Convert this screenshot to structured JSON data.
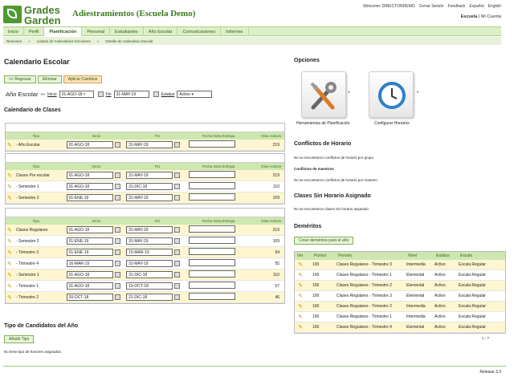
{
  "header": {
    "logo_line1": "Grades",
    "logo_line2": "Garden",
    "app_title": "Adiestramientos (Escuela Demo)",
    "top_links": [
      "Welcome: DIRECTORDEMO",
      "Cerrar Sesión",
      "Feedback",
      "Español",
      "English"
    ],
    "account_school": "Escuela",
    "account_sep": "|",
    "account_link": "Mi Cuenta"
  },
  "nav": {
    "tabs": [
      "Inicio",
      "Perfil",
      "Planificación",
      "Personal",
      "Estudiantes",
      "Año Escolar",
      "Comunicaciones",
      "Informes"
    ]
  },
  "breadcrumbs": [
    "Resumen",
    "»",
    "Listado de Calendarios Escolares",
    "»",
    "Detalle de Calendario Escolar"
  ],
  "page_title": "Calendario Escolar",
  "buttons": {
    "back": "<< Regresar",
    "delete": "Eliminar",
    "apply": "Aplicar Cambios"
  },
  "year": {
    "label": "Año Escolar",
    "arrows": "»»",
    "start_label": "Inicio",
    "start": "01-AGO-18",
    "clear": "×",
    "end_label": "Fin",
    "end": "31-MAY-19",
    "status_label": "Estatus",
    "status": "Activo"
  },
  "classes_title": "Calendario de Clases",
  "columns": {
    "tipo": "Tipo",
    "inicio": "Inicio",
    "fin": "Fin",
    "fecha": "Fecha Nota Entrega",
    "dias": "Días Activos"
  },
  "group1": [
    {
      "tipo": "- Año Escolar",
      "inicio": "01-AGO-18",
      "fin": "31-MAY-19",
      "dias": "219"
    }
  ],
  "group2": [
    {
      "tipo": "Clases Pre escolar",
      "inicio": "01-AGO-18",
      "fin": "31-MAY-19",
      "dias": "219"
    },
    {
      "tipo": "- Semestre 1",
      "inicio": "01-AGO-18",
      "fin": "31-DIC-18",
      "dias": "110"
    },
    {
      "tipo": "- Semestre 2",
      "inicio": "01-ENE-19",
      "fin": "31-MAY-19",
      "dias": "109"
    }
  ],
  "group3": [
    {
      "tipo": "Clases Regulares",
      "inicio": "01-AGO-18",
      "fin": "31-MAY-19",
      "dias": "219"
    },
    {
      "tipo": "- Semestre 2",
      "inicio": "01-ENE-19",
      "fin": "31-MAY-19",
      "dias": "109"
    },
    {
      "tipo": "- Trimestre 3",
      "inicio": "01-ENE-19",
      "fin": "15-MAR-19",
      "dias": "54"
    },
    {
      "tipo": "- Trimestre 4",
      "inicio": "16-MAR-19",
      "fin": "31-MAY-19",
      "dias": "55"
    },
    {
      "tipo": "- Semestre 1",
      "inicio": "01-AGO-18",
      "fin": "31-DIC-18",
      "dias": "110"
    },
    {
      "tipo": "- Trimestre 1",
      "inicio": "01-AGO-18",
      "fin": "19-OCT-18",
      "dias": "57"
    },
    {
      "tipo": "- Trimestre 2",
      "inicio": "20-OCT-18",
      "fin": "21-DIC-18",
      "dias": "46"
    }
  ],
  "candidates": {
    "title": "Tipo de Candidatos del Año",
    "add_button": "Añadir Tipo",
    "empty": "No tiene tipo de honores asignados."
  },
  "options": {
    "title": "Opciones",
    "tools_label": "Herramientas de Planificación",
    "schedule_label": "Configurar Horarios"
  },
  "conflicts": {
    "title": "Conflictos de Horario",
    "group_msg": "No se encontraron conflictos de horario por grupo",
    "teachers_title": "Conflictos de maestros",
    "teachers_msg": "No se encontraron conflictos de horario por maestro"
  },
  "unassigned": {
    "title": "Clases Sin Horario Asignado",
    "msg": "No se encontraron clases sin horario asignado"
  },
  "demerits": {
    "title": "Deméritos",
    "create_button": "Crear deméritos para el año",
    "headers": [
      "Ver",
      "Puntos",
      "Periodo",
      "Nivel",
      "Estatus",
      "Escala"
    ],
    "rows": [
      {
        "puntos": "100",
        "periodo": "Clases Regulares - Trimestre 3",
        "nivel": "Intermedia",
        "estatus": "Activo",
        "escala": "Escala Regular"
      },
      {
        "puntos": "100",
        "periodo": "Clases Regulares - Trimestre 1",
        "nivel": "Elemental",
        "estatus": "Activo",
        "escala": "Escala Regular"
      },
      {
        "puntos": "100",
        "periodo": "Clases Regulares - Trimestre 2",
        "nivel": "Elemental",
        "estatus": "Activo",
        "escala": "Escala Regular"
      },
      {
        "puntos": "100",
        "periodo": "Clases Regulares - Trimestre 3",
        "nivel": "Elemental",
        "estatus": "Activo",
        "escala": "Escala Regular"
      },
      {
        "puntos": "100",
        "periodo": "Clases Regulares - Trimestre 2",
        "nivel": "Intermedia",
        "estatus": "Activo",
        "escala": "Escala Regular"
      },
      {
        "puntos": "100",
        "periodo": "Clases Regulares - Trimestre 1",
        "nivel": "Intermedia",
        "estatus": "Activo",
        "escala": "Escala Regular"
      },
      {
        "puntos": "100",
        "periodo": "Clases Regulares - Trimestre 4",
        "nivel": "Elemental",
        "estatus": "Activo",
        "escala": "Escala Regular"
      }
    ],
    "pager": "1 - 7"
  },
  "release": "Release 3.3"
}
